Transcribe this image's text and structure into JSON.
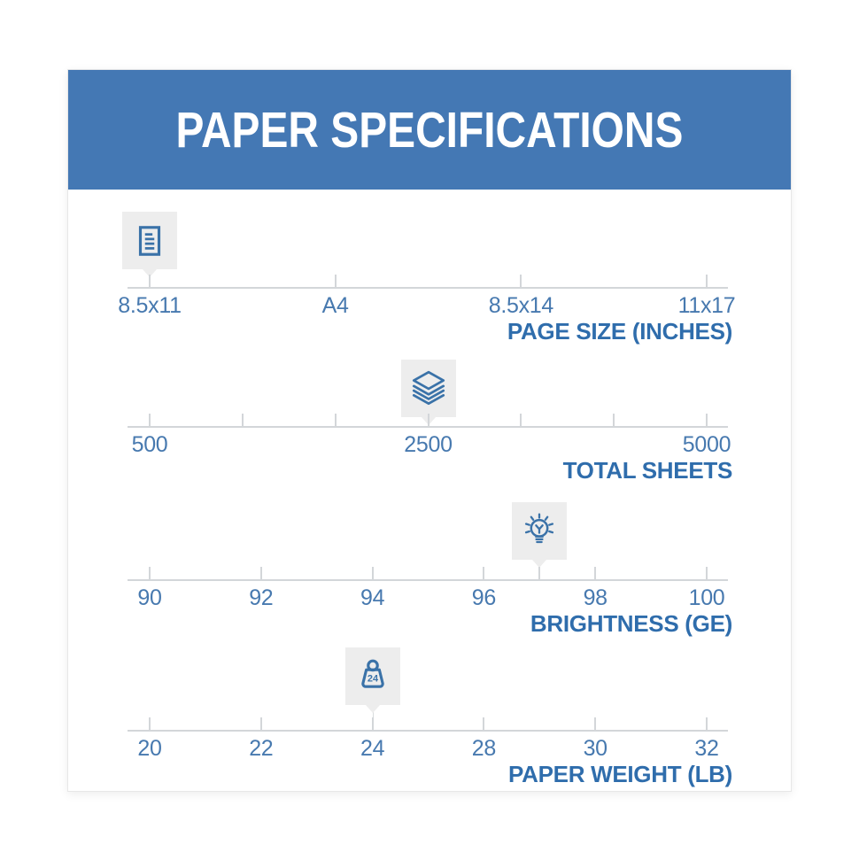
{
  "header": {
    "title": "PAPER SPECIFICATIONS"
  },
  "colors": {
    "banner_blue": "#4478b4",
    "axis_title_blue": "#2f6dac",
    "tick_label_blue": "#4779af",
    "icon_blue": "#3a72a8",
    "marker_box_gray": "#ededed",
    "axis_line_gray": "#d3d6d9"
  },
  "chart_data": [
    {
      "type": "scale",
      "title": "PAGE SIZE (INCHES)",
      "ticks": [
        {
          "f": 0,
          "label": "8.5x11"
        },
        {
          "f": 0.3333,
          "label": "A4"
        },
        {
          "f": 0.6667,
          "label": "8.5x14"
        },
        {
          "f": 1,
          "label": "11x17"
        }
      ],
      "marker": {
        "f": 0,
        "value": "8.5x11",
        "icon": "document-icon"
      }
    },
    {
      "type": "scale",
      "title": "TOTAL SHEETS",
      "axis_range": [
        500,
        5000
      ],
      "ticks": [
        {
          "f": 0,
          "label": "500"
        },
        {
          "f": 0.1667,
          "label": ""
        },
        {
          "f": 0.3333,
          "label": ""
        },
        {
          "f": 0.5,
          "label": "2500"
        },
        {
          "f": 0.6667,
          "label": ""
        },
        {
          "f": 0.8333,
          "label": ""
        },
        {
          "f": 1,
          "label": "5000"
        }
      ],
      "marker": {
        "f": 0.5,
        "value": "2500",
        "icon": "sheets-stack-icon"
      }
    },
    {
      "type": "scale",
      "title": "BRIGHTNESS (GE)",
      "axis_range": [
        90,
        100
      ],
      "ticks": [
        {
          "f": 0,
          "label": "90"
        },
        {
          "f": 0.2,
          "label": "92"
        },
        {
          "f": 0.4,
          "label": "94"
        },
        {
          "f": 0.6,
          "label": "96"
        },
        {
          "f": 0.7,
          "label": ""
        },
        {
          "f": 0.8,
          "label": "98"
        },
        {
          "f": 1,
          "label": "100"
        }
      ],
      "marker": {
        "f": 0.7,
        "value": "97",
        "icon": "lightbulb-icon"
      }
    },
    {
      "type": "scale",
      "title": "PAPER WEIGHT (LB)",
      "ticks": [
        {
          "f": 0,
          "label": "20"
        },
        {
          "f": 0.2,
          "label": "22"
        },
        {
          "f": 0.4,
          "label": "24"
        },
        {
          "f": 0.6,
          "label": "28"
        },
        {
          "f": 0.8,
          "label": "30"
        },
        {
          "f": 1,
          "label": "32"
        }
      ],
      "marker": {
        "f": 0.4,
        "value": "24",
        "icon": "weight-icon",
        "badge": "24"
      }
    }
  ]
}
